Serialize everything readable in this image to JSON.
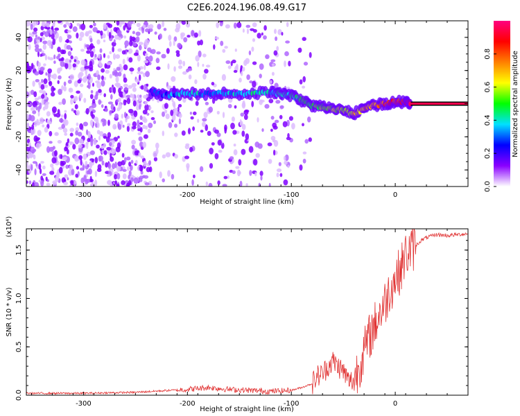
{
  "title": "C2E6.2024.196.08.49.G17",
  "chart_data": [
    {
      "type": "heatmap",
      "xlabel": "Height of straight line (km)",
      "ylabel": "Frequency (Hz)",
      "xlim": [
        -355,
        70
      ],
      "ylim": [
        -50,
        50
      ],
      "xticks": [
        -300,
        -200,
        -100,
        0
      ],
      "yticks": [
        -40,
        -20,
        0,
        20,
        40
      ],
      "colorbar": {
        "label": "Normalized spectral amplitude",
        "range": [
          0,
          1
        ],
        "ticks": [
          "0.0",
          "0.2",
          "0.4",
          "0.6",
          "0.8"
        ],
        "colors": [
          "#ffffff",
          "#8a00ff",
          "#0000ff",
          "#00e0ff",
          "#00ff00",
          "#ffff00",
          "#ff8000",
          "#ff0000",
          "#ff0080"
        ]
      },
      "signal_track": {
        "x": [
          -235,
          -220,
          -200,
          -180,
          -160,
          -140,
          -120,
          -110,
          -100,
          -90,
          -80,
          -70,
          -60,
          -50,
          -40,
          -30,
          -20,
          -10,
          0,
          10,
          15
        ],
        "frequency": [
          7,
          5,
          6,
          6,
          6,
          6,
          7,
          6,
          5,
          2,
          -1,
          -2,
          -3,
          -4,
          -6,
          -3,
          -1,
          0,
          1,
          1,
          0
        ],
        "amplitude": [
          0.25,
          0.3,
          0.35,
          0.35,
          0.35,
          0.4,
          0.35,
          0.4,
          0.4,
          0.45,
          0.5,
          0.55,
          0.6,
          0.6,
          0.65,
          0.7,
          0.75,
          0.8,
          0.85,
          0.9,
          0.9
        ]
      },
      "constant_line": {
        "x": [
          15,
          70
        ],
        "frequency": 0,
        "amplitude": 0.95
      }
    },
    {
      "type": "line",
      "xlabel": "Height of straight line (km)",
      "ylabel": "SNR (10 * v/v)",
      "yscale_note": "(x10⁴)",
      "xlim": [
        -355,
        70
      ],
      "ylim": [
        0,
        1.72
      ],
      "xticks": [
        -300,
        -200,
        -100,
        0
      ],
      "yticks": [
        "0.0",
        "0.5",
        "1.0",
        "1.5"
      ],
      "color": "#e03030",
      "series": [
        {
          "x": [
            -355,
            -300,
            -250,
            -200,
            -180,
            -160,
            -140,
            -120,
            -100,
            -90,
            -80,
            -75,
            -70,
            -65,
            -60,
            -55,
            -50,
            -45,
            -40,
            -35,
            -30,
            -25,
            -20,
            -15,
            -10,
            -5,
            0,
            5,
            10,
            15,
            20,
            25,
            30,
            40,
            50,
            60,
            70
          ],
          "values": [
            0.02,
            0.02,
            0.03,
            0.06,
            0.08,
            0.06,
            0.05,
            0.04,
            0.05,
            0.08,
            0.12,
            0.2,
            0.22,
            0.3,
            0.35,
            0.3,
            0.25,
            0.15,
            0.15,
            0.3,
            0.45,
            0.6,
            0.72,
            0.85,
            0.95,
            1.1,
            1.2,
            1.3,
            1.45,
            1.5,
            1.55,
            1.6,
            1.63,
            1.66,
            1.65,
            1.66,
            1.67
          ]
        }
      ]
    }
  ]
}
